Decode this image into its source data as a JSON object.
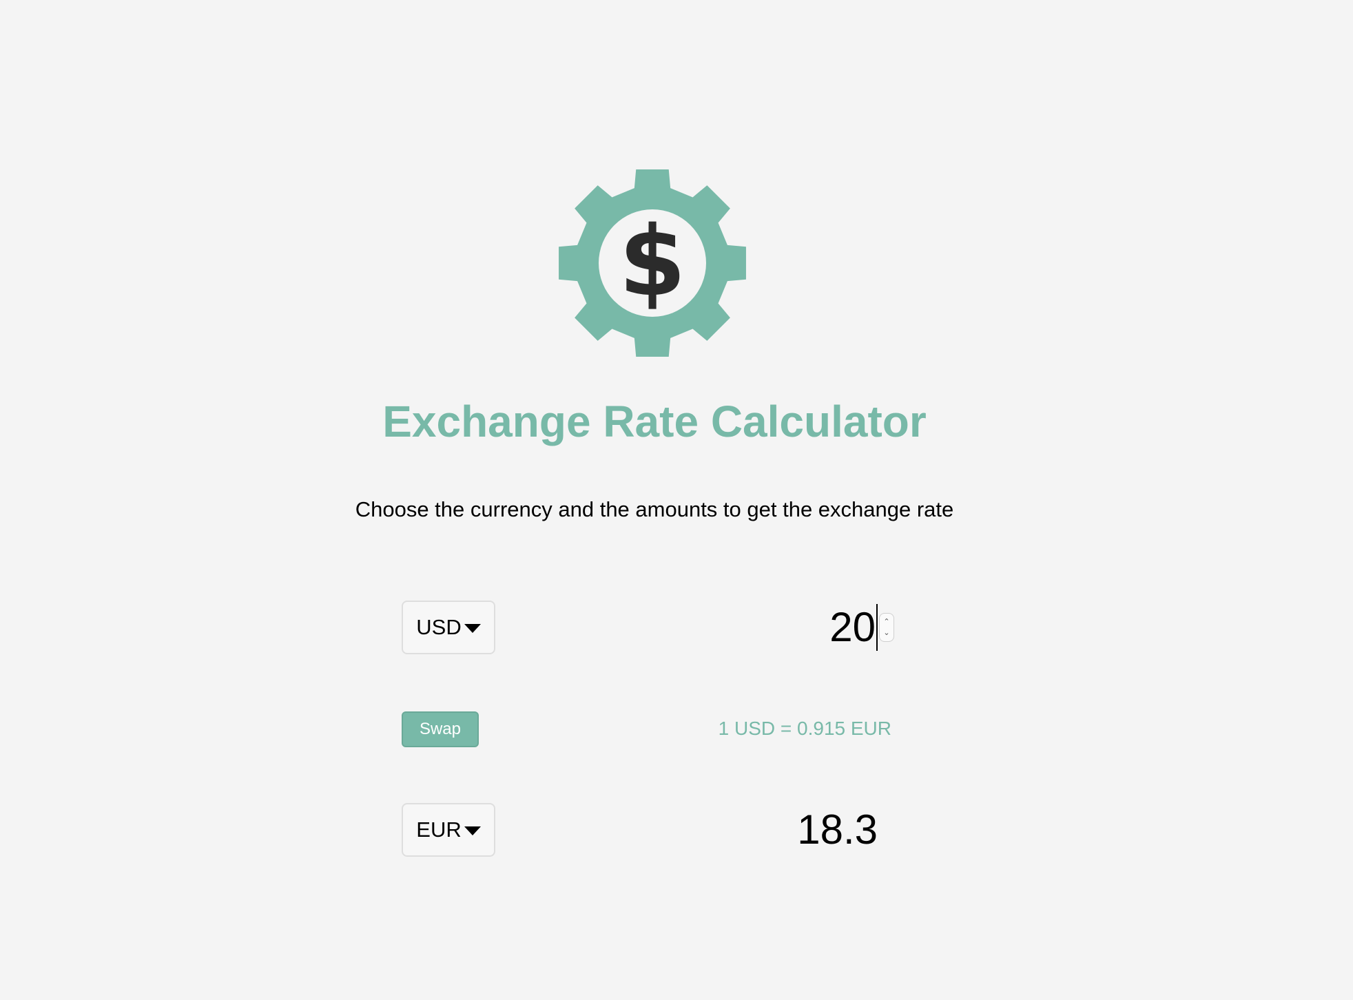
{
  "app": {
    "title": "Exchange Rate Calculator",
    "subtitle": "Choose the currency and the amounts to get the exchange rate"
  },
  "logo": {
    "icon": "gear-dollar-icon",
    "symbol": "$",
    "gear_color": "#78b9a8",
    "symbol_color": "#2b2b2b"
  },
  "currency_one": {
    "selected": "USD",
    "amount": "20"
  },
  "swap": {
    "label": "Swap"
  },
  "rate_text": "1 USD = 0.915 EUR",
  "currency_two": {
    "selected": "EUR",
    "amount": "18.3"
  },
  "colors": {
    "accent": "#78b9a8",
    "background": "#f4f4f4"
  }
}
